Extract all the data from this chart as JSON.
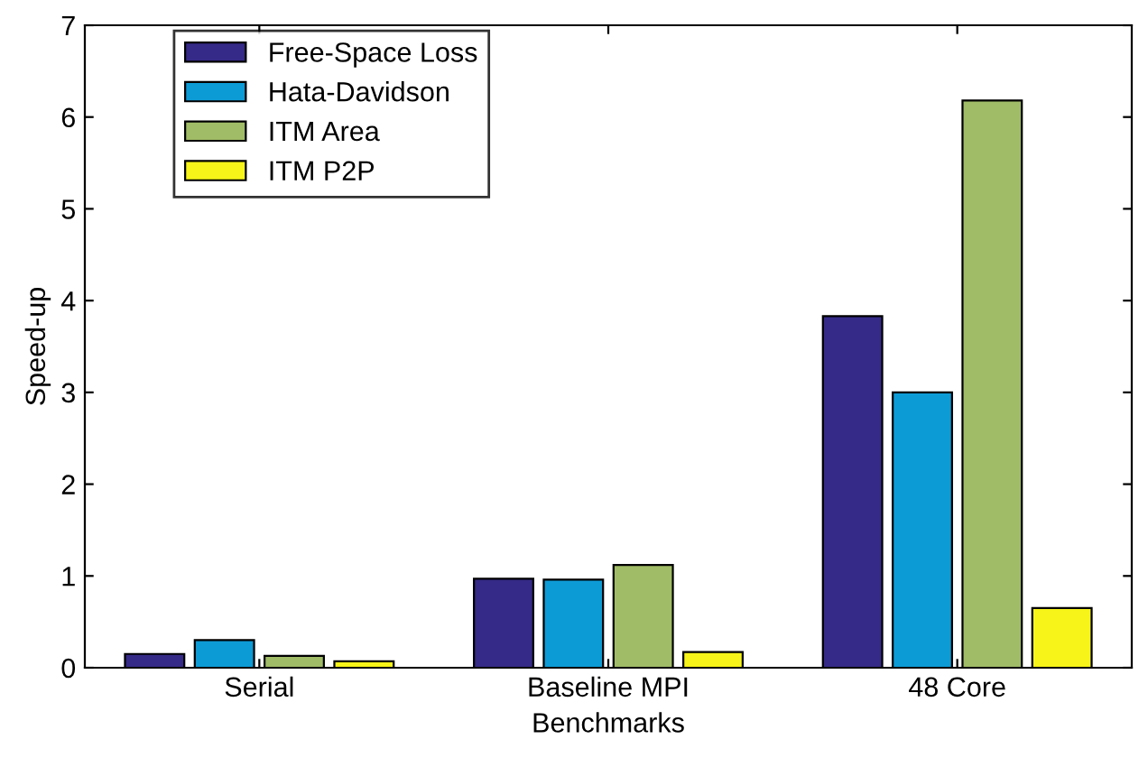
{
  "chart_data": {
    "type": "bar",
    "xlabel": "Benchmarks",
    "ylabel": "Speed-up",
    "categories": [
      "Serial",
      "Baseline MPI",
      "48 Core"
    ],
    "series": [
      {
        "name": "Free-Space Loss",
        "color": "#352a87",
        "values": [
          0.15,
          0.97,
          3.83
        ]
      },
      {
        "name": "Hata-Davidson",
        "color": "#0d9bd6",
        "values": [
          0.3,
          0.96,
          3.0
        ]
      },
      {
        "name": "ITM Area",
        "color": "#a0bc66",
        "values": [
          0.13,
          1.12,
          6.18
        ]
      },
      {
        "name": "ITM P2P",
        "color": "#f6f418",
        "values": [
          0.07,
          0.17,
          0.65
        ]
      }
    ],
    "ylim": [
      0,
      7
    ],
    "yticks": [
      0,
      1,
      2,
      3,
      4,
      5,
      6,
      7
    ],
    "grid": false,
    "legend": "top left"
  }
}
